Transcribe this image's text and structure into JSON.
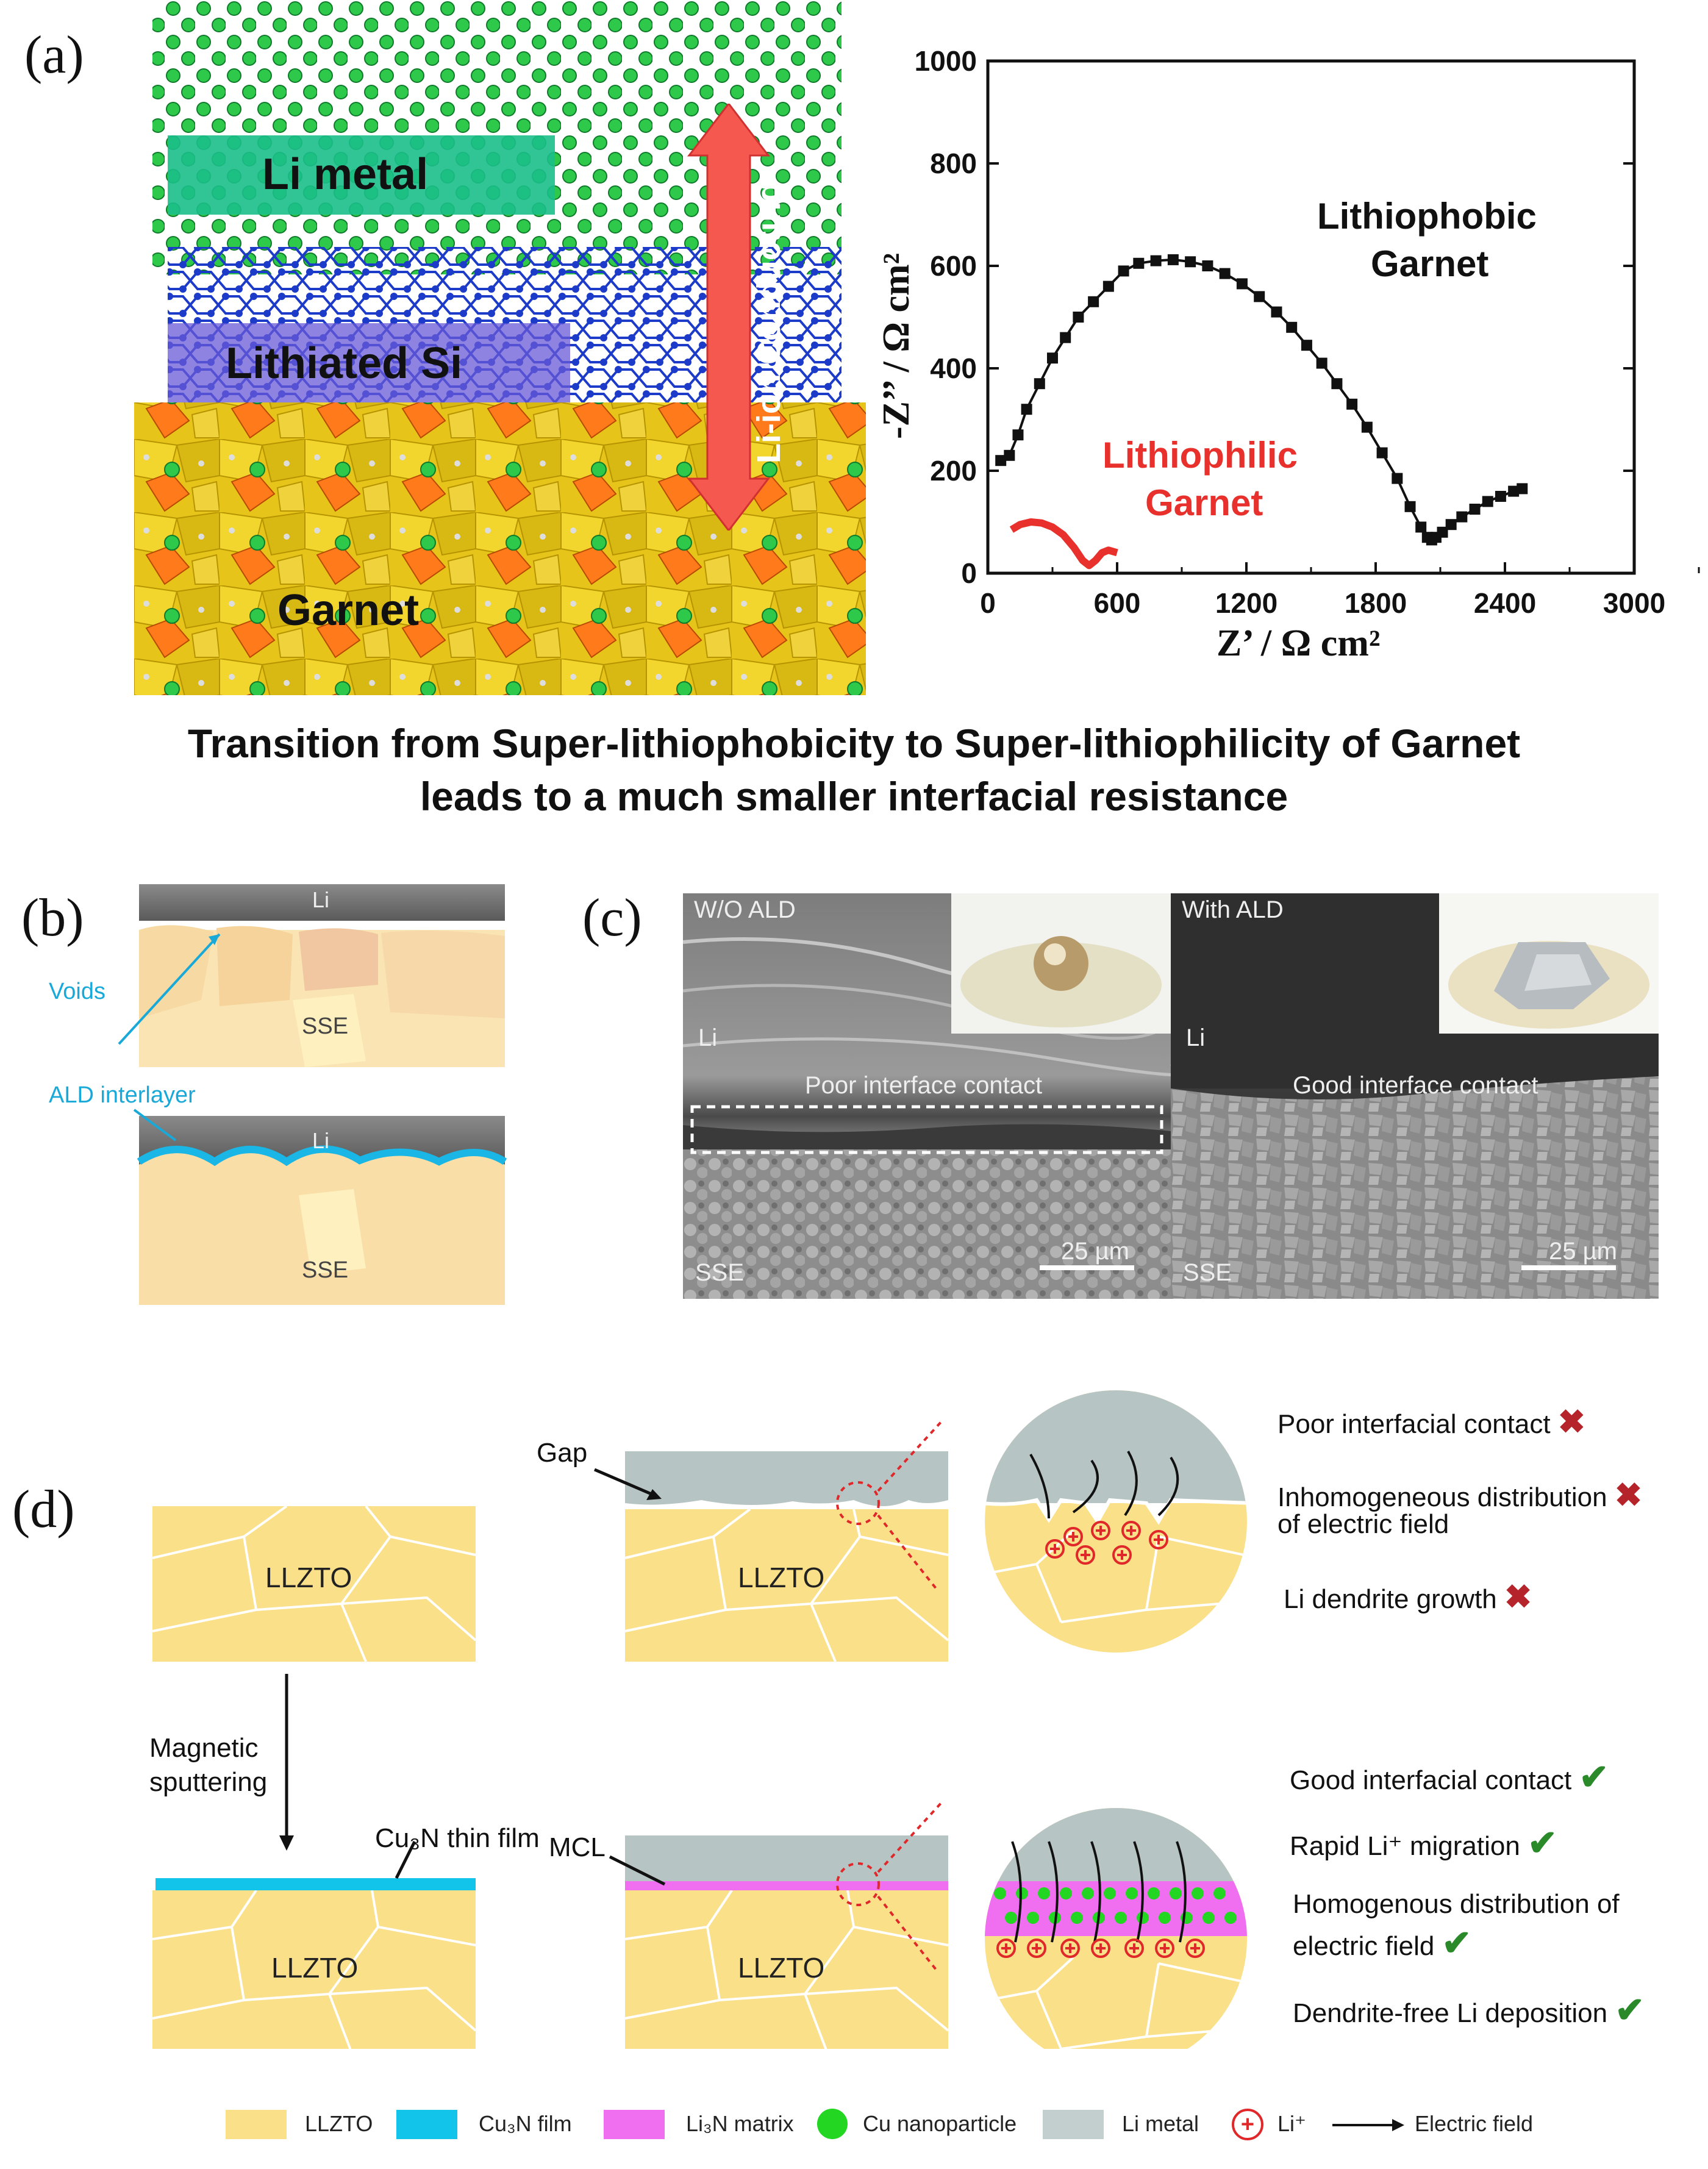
{
  "panels": {
    "a": "(a)",
    "b": "(b)",
    "c": "(c)",
    "d": "(d)"
  },
  "panel_a": {
    "layers": [
      "Li metal",
      "Lithiated Si",
      "Garnet"
    ],
    "arrow_label": "Li-ion Conducting",
    "plot": {
      "x_label": "Z’ / Ω cm²",
      "y_label": "-Z’’ / Ω cm²",
      "x_ticks": [
        "0",
        "600",
        "1200",
        "1800",
        "2400",
        "3000"
      ],
      "y_ticks": [
        "0",
        "200",
        "400",
        "600",
        "800",
        "1000"
      ],
      "curve_labels": {
        "phobic_1": "Lithiophobic",
        "phobic_2": "Garnet",
        "philic_1": "Lithiophilic",
        "philic_2": "Garnet"
      }
    },
    "caption_line1": "Transition from Super-lithiophobicity to Super-lithiophilicity of Garnet",
    "caption_line2": "leads to a much smaller interfacial resistance"
  },
  "chart_data": {
    "type": "scatter",
    "xlabel": "Z’ / Ω cm²",
    "ylabel": "-Z’’ / Ω cm²",
    "xlim": [
      0,
      3000
    ],
    "ylim": [
      0,
      1000
    ],
    "series": [
      {
        "name": "Lithiophobic Garnet",
        "color": "#111111",
        "x": [
          60,
          100,
          140,
          180,
          240,
          300,
          360,
          420,
          490,
          560,
          630,
          700,
          780,
          860,
          940,
          1020,
          1100,
          1180,
          1260,
          1340,
          1410,
          1480,
          1550,
          1620,
          1690,
          1760,
          1830,
          1900,
          1960,
          2010,
          2040,
          2060,
          2080,
          2110,
          2150,
          2200,
          2260,
          2320,
          2380,
          2440,
          2480
        ],
        "y": [
          220,
          230,
          270,
          320,
          370,
          420,
          460,
          500,
          530,
          560,
          590,
          605,
          610,
          612,
          608,
          600,
          585,
          565,
          540,
          510,
          480,
          445,
          410,
          370,
          330,
          285,
          235,
          185,
          130,
          90,
          70,
          65,
          70,
          80,
          95,
          110,
          125,
          140,
          150,
          160,
          165
        ]
      },
      {
        "name": "Lithiophilic Garnet",
        "color": "#e8312d",
        "x": [
          110,
          150,
          200,
          250,
          300,
          350,
          400,
          440,
          470,
          500,
          530,
          560,
          600
        ],
        "y": [
          85,
          95,
          100,
          98,
          90,
          75,
          50,
          25,
          15,
          25,
          40,
          45,
          40
        ]
      }
    ]
  },
  "panel_b": {
    "top": {
      "li": "Li",
      "sse": "SSE",
      "voids": "Voids"
    },
    "bottom": {
      "li": "Li",
      "sse": "SSE",
      "ald": "ALD interlayer"
    }
  },
  "panel_c": {
    "left": {
      "title": "W/O ALD",
      "li": "Li",
      "contact": "Poor interface contact",
      "sse": "SSE",
      "scale": "25 µm"
    },
    "right": {
      "title": "With ALD",
      "li": "Li",
      "contact": "Good interface contact",
      "sse": "SSE",
      "scale": "25 µm"
    }
  },
  "panel_d": {
    "llzto": "LLZTO",
    "gap": "Gap",
    "mcl": "MCL",
    "sputter_1": "Magnetic",
    "sputter_2": "sputtering",
    "cu3n": "Cu₃N thin film",
    "bad_items": [
      "Poor interfacial contact",
      "Inhomogeneous distribution",
      "of electric field",
      "Li dendrite growth"
    ],
    "good_items": [
      "Good interfacial contact",
      "Rapid Li⁺ migration",
      "Homogenous distribution of",
      "electric field",
      "Dendrite-free Li deposition"
    ],
    "legend": [
      "LLZTO",
      "Cu₃N film",
      "Li₃N matrix",
      "Cu nanoparticle",
      "Li metal",
      "Li⁺",
      "Electric field"
    ],
    "colors": {
      "llzto": "#fbe08a",
      "cu3n": "#12c3ea",
      "li3n": "#f06ef0",
      "cu": "#22d622",
      "li_metal": "#c3cfcf",
      "li_plus": "#e0282a",
      "bad": "#b5242a",
      "good": "#2a8a2a"
    }
  }
}
